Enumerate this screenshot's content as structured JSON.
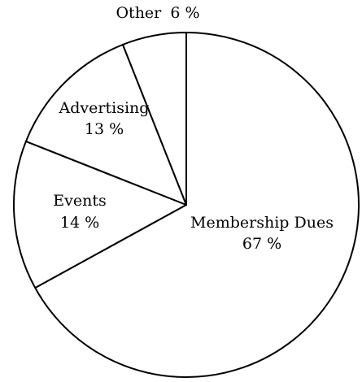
{
  "chart_data": {
    "type": "pie",
    "slices": [
      {
        "label": "Membership Dues",
        "value": 67,
        "value_label": "67 %"
      },
      {
        "label": "Events",
        "value": 14,
        "value_label": "14 %"
      },
      {
        "label": "Advertising",
        "value": 13,
        "value_label": "13 %"
      },
      {
        "label": "Other",
        "value": 6,
        "value_label": "6 %"
      }
    ],
    "colors": {
      "fill": "#ffffff",
      "stroke": "#000000"
    },
    "start": "12 o'clock",
    "direction": "clockwise",
    "legend": "none"
  }
}
